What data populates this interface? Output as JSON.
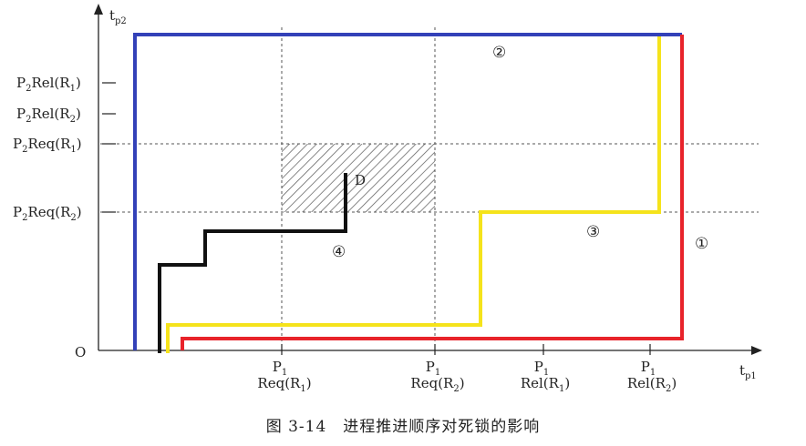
{
  "figure": {
    "origin": "O",
    "x_axis": {
      "main": "t",
      "sub": "p1"
    },
    "y_axis": {
      "main": "t",
      "sub": "p2"
    },
    "x_ticks": [
      {
        "top": {
          "main": "P",
          "sub": "1"
        },
        "bottom": {
          "pre": "Req(R",
          "sub": "1",
          "post": ")"
        }
      },
      {
        "top": {
          "main": "P",
          "sub": "1"
        },
        "bottom": {
          "pre": "Req(R",
          "sub": "2",
          "post": ")"
        }
      },
      {
        "top": {
          "main": "P",
          "sub": "1"
        },
        "bottom": {
          "pre": "Rel(R",
          "sub": "1",
          "post": ")"
        }
      },
      {
        "top": {
          "main": "P",
          "sub": "1"
        },
        "bottom": {
          "pre": "Rel(R",
          "sub": "2",
          "post": ")"
        }
      }
    ],
    "y_ticks": [
      {
        "p": "P",
        "psub": "2",
        "mid": "Rel(R",
        "rsub": "1",
        "post": ")"
      },
      {
        "p": "P",
        "psub": "2",
        "mid": "Rel(R",
        "rsub": "2",
        "post": ")"
      },
      {
        "p": "P",
        "psub": "2",
        "mid": "Req(R",
        "rsub": "1",
        "post": ")"
      },
      {
        "p": "P",
        "psub": "2",
        "mid": "Req(R",
        "rsub": "2",
        "post": ")"
      }
    ],
    "deadlock_label": "D",
    "path_labels": [
      "①",
      "②",
      "③",
      "④"
    ],
    "colors": {
      "path1": "#e8232a",
      "path2": "#3341b8",
      "path3": "#f5e31b",
      "path4": "#111111",
      "axis": "#222222",
      "hatch": "#555555"
    },
    "caption": "图 3-14　进程推进顺序对死锁的影响"
  }
}
